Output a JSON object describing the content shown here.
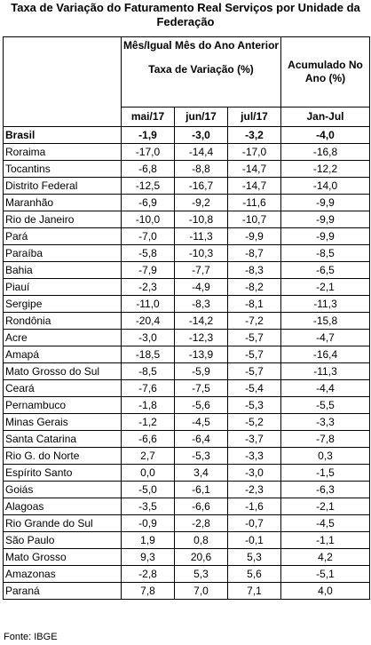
{
  "title": "Taxa de Variação do Faturamento Real Serviços por Unidade da Federação",
  "header": {
    "group1": "Mês/Igual Mês do Ano Anterior",
    "group1_sub": "Taxa de Variação (%)",
    "group2": "Acumulado No Ano (%)",
    "months": [
      "mai/17",
      "jun/17",
      "jul/17",
      "Jan-Jul"
    ]
  },
  "rows": [
    {
      "state": "Brasil",
      "mai": "-1,9",
      "jun": "-3,0",
      "jul": "-3,2",
      "acc": "-4,0"
    },
    {
      "state": "Roraima",
      "mai": "-17,0",
      "jun": "-14,4",
      "jul": "-17,0",
      "acc": "-16,8"
    },
    {
      "state": "Tocantins",
      "mai": "-6,8",
      "jun": "-8,8",
      "jul": "-14,7",
      "acc": "-12,2"
    },
    {
      "state": "Distrito Federal",
      "mai": "-12,5",
      "jun": "-16,7",
      "jul": "-14,7",
      "acc": "-14,0"
    },
    {
      "state": "Maranhão",
      "mai": "-6,9",
      "jun": "-9,2",
      "jul": "-11,6",
      "acc": "-9,9"
    },
    {
      "state": "Rio de Janeiro",
      "mai": "-10,0",
      "jun": "-10,8",
      "jul": "-10,7",
      "acc": "-9,9"
    },
    {
      "state": "Pará",
      "mai": "-7,0",
      "jun": "-11,3",
      "jul": "-9,9",
      "acc": "-9,9"
    },
    {
      "state": "Paraíba",
      "mai": "-5,8",
      "jun": "-10,3",
      "jul": "-8,7",
      "acc": "-8,5"
    },
    {
      "state": "Bahia",
      "mai": "-7,9",
      "jun": "-7,7",
      "jul": "-8,3",
      "acc": "-6,5"
    },
    {
      "state": "Piauí",
      "mai": "-2,3",
      "jun": "-4,9",
      "jul": "-8,2",
      "acc": "-2,1"
    },
    {
      "state": "Sergipe",
      "mai": "-11,0",
      "jun": "-8,3",
      "jul": "-8,1",
      "acc": "-11,3"
    },
    {
      "state": "Rondônia",
      "mai": "-20,4",
      "jun": "-14,2",
      "jul": "-7,2",
      "acc": "-15,8"
    },
    {
      "state": "Acre",
      "mai": "-3,0",
      "jun": "-12,3",
      "jul": "-5,7",
      "acc": "-4,7"
    },
    {
      "state": "Amapá",
      "mai": "-18,5",
      "jun": "-13,9",
      "jul": "-5,7",
      "acc": "-16,4"
    },
    {
      "state": "Mato Grosso do Sul",
      "mai": "-8,5",
      "jun": "-5,9",
      "jul": "-5,7",
      "acc": "-11,3"
    },
    {
      "state": "Ceará",
      "mai": "-7,6",
      "jun": "-7,5",
      "jul": "-5,4",
      "acc": "-4,4"
    },
    {
      "state": "Pernambuco",
      "mai": "-1,8",
      "jun": "-5,6",
      "jul": "-5,3",
      "acc": "-5,5"
    },
    {
      "state": "Minas Gerais",
      "mai": "-1,2",
      "jun": "-4,5",
      "jul": "-5,2",
      "acc": "-3,3"
    },
    {
      "state": "Santa Catarina",
      "mai": "-6,6",
      "jun": "-6,4",
      "jul": "-3,7",
      "acc": "-7,8"
    },
    {
      "state": "Rio G. do Norte",
      "mai": "2,7",
      "jun": "-5,3",
      "jul": "-3,3",
      "acc": "0,3"
    },
    {
      "state": "Espírito Santo",
      "mai": "0,0",
      "jun": "3,4",
      "jul": "-3,0",
      "acc": "-1,5"
    },
    {
      "state": "Goiás",
      "mai": "-5,0",
      "jun": "-6,1",
      "jul": "-2,3",
      "acc": "-6,3"
    },
    {
      "state": "Alagoas",
      "mai": "-3,5",
      "jun": "-6,6",
      "jul": "-1,6",
      "acc": "-2,1"
    },
    {
      "state": "Rio Grande do Sul",
      "mai": "-0,9",
      "jun": "-2,8",
      "jul": "-0,7",
      "acc": "-4,5"
    },
    {
      "state": "São Paulo",
      "mai": "1,9",
      "jun": "0,8",
      "jul": "-0,1",
      "acc": "-1,1"
    },
    {
      "state": "Mato Grosso",
      "mai": "9,3",
      "jun": "20,6",
      "jul": "5,3",
      "acc": "4,2"
    },
    {
      "state": "Amazonas",
      "mai": "-2,8",
      "jun": "5,3",
      "jul": "5,6",
      "acc": "-5,1"
    },
    {
      "state": "Paraná",
      "mai": "7,8",
      "jun": "7,0",
      "jul": "7,1",
      "acc": "4,0"
    }
  ],
  "source": "Fonte: IBGE"
}
